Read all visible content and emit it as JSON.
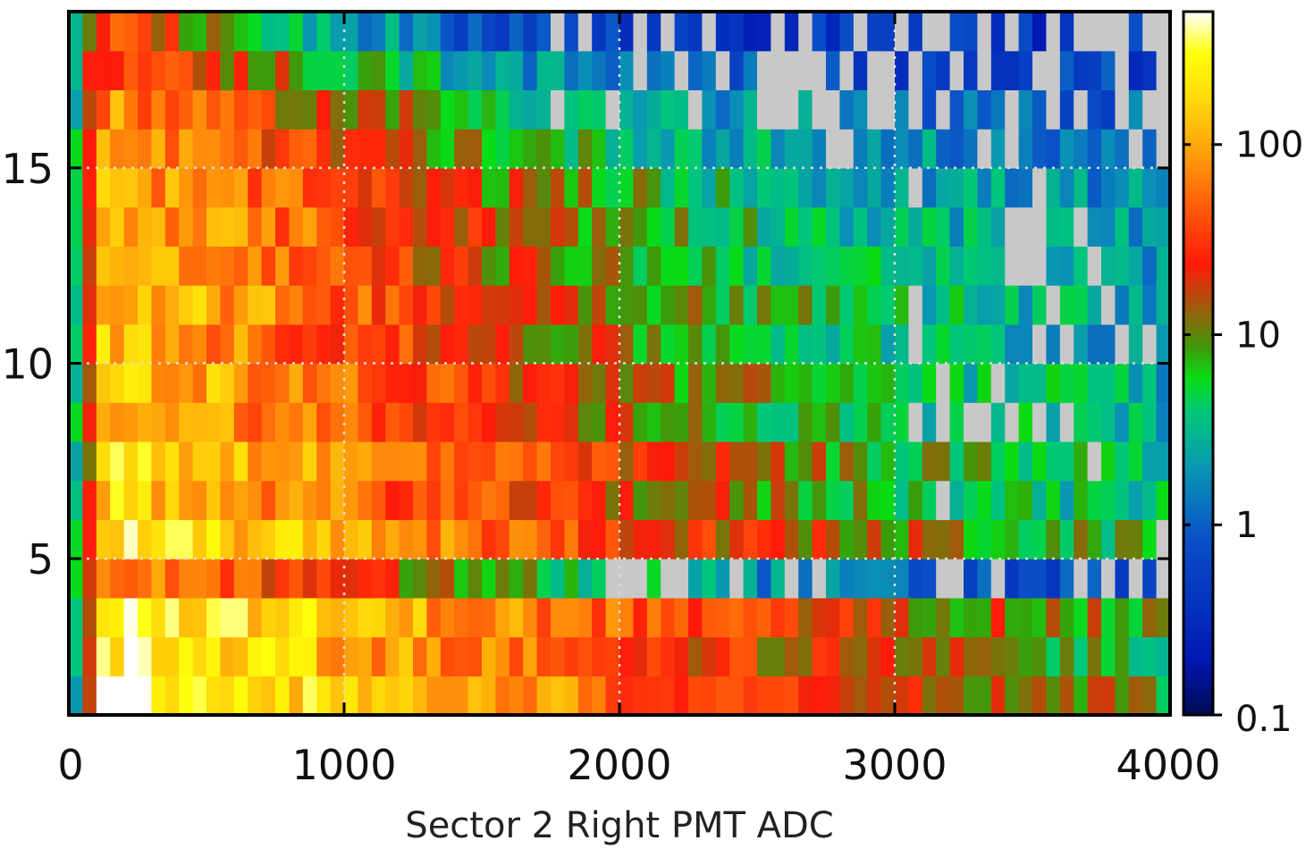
{
  "chart_data": {
    "type": "heatmap",
    "title": "",
    "xlabel": "Sector 2 Right PMT ADC",
    "ylabel": "",
    "xlim": [
      0,
      4000
    ],
    "ylim": [
      1,
      19
    ],
    "x_bins": 80,
    "x_bin_width": 50,
    "y_rows": 18,
    "x_ticks": [
      0,
      1000,
      2000,
      3000,
      4000
    ],
    "x_tick_labels": [
      "0",
      "1000",
      "2000",
      "3000",
      "4000"
    ],
    "y_ticks": [
      5,
      10,
      15
    ],
    "y_tick_labels": [
      "5",
      "10",
      "15"
    ],
    "grid": true,
    "colorbar": {
      "scale": "log",
      "range": [
        0.1,
        500
      ],
      "ticks": [
        0.1,
        1,
        10,
        100
      ],
      "tick_labels": [
        "0.1",
        "1",
        "10",
        "100"
      ],
      "empty_color": "#c8c8c8",
      "colormap": [
        "#000a52",
        "#0018b4",
        "#0a50c8",
        "#0a96b4",
        "#00c878",
        "#0adc14",
        "#3c9c0a",
        "#a05a0a",
        "#ff1a0a",
        "#ff5a0a",
        "#ffa00a",
        "#ffdc0a",
        "#ffff0a",
        "#ffffff"
      ]
    },
    "row_profile": {
      "note_rows": "rows 1..18 bottom to top",
      "peak_counts": [
        420,
        300,
        340,
        90,
        260,
        160,
        240,
        150,
        170,
        130,
        160,
        120,
        140,
        110,
        90,
        70,
        45,
        30
      ],
      "decay_adc": [
        900,
        850,
        900,
        550,
        850,
        800,
        760,
        700,
        720,
        680,
        700,
        650,
        640,
        620,
        560,
        520,
        430,
        330
      ],
      "floor_counts": [
        2.5,
        2.2,
        2.4,
        0.5,
        2.2,
        1.8,
        1.8,
        1.7,
        1.8,
        1.6,
        1.7,
        1.5,
        1.5,
        1.4,
        1.2,
        0.9,
        0.6,
        0.4
      ]
    }
  }
}
